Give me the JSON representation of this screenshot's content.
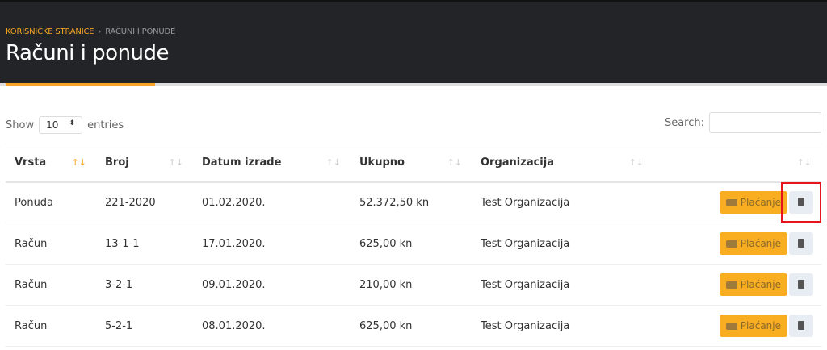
{
  "breadcrumb": {
    "parent": "KORISNIČKE STRANICE",
    "current": "RAČUNI I PONUDE"
  },
  "page_title": "Računi i ponude",
  "length": {
    "show": "Show",
    "value": "10",
    "entries": "entries"
  },
  "search": {
    "label": "Search:",
    "value": ""
  },
  "columns": [
    "Vrsta",
    "Broj",
    "Datum izrade",
    "Ukupno",
    "Organizacija",
    ""
  ],
  "sort": {
    "active_column": "Vrsta",
    "direction": "asc"
  },
  "rows": [
    {
      "vrsta": "Ponuda",
      "broj": "221-2020",
      "datum": "01.02.2020.",
      "ukupno": "52.372,50 kn",
      "org": "Test Organizacija",
      "pay": "Plaćanje"
    },
    {
      "vrsta": "Račun",
      "broj": "13-1-1",
      "datum": "17.01.2020.",
      "ukupno": "625,00 kn",
      "org": "Test Organizacija",
      "pay": "Plaćanje"
    },
    {
      "vrsta": "Račun",
      "broj": "3-2-1",
      "datum": "09.01.2020.",
      "ukupno": "210,00 kn",
      "org": "Test Organizacija",
      "pay": "Plaćanje"
    },
    {
      "vrsta": "Račun",
      "broj": "5-2-1",
      "datum": "08.01.2020.",
      "ukupno": "625,00 kn",
      "org": "Test Organizacija",
      "pay": "Plaćanje"
    }
  ],
  "colors": {
    "accent": "#f4a422",
    "header_bg": "#222428",
    "highlight": "#e8141c"
  }
}
